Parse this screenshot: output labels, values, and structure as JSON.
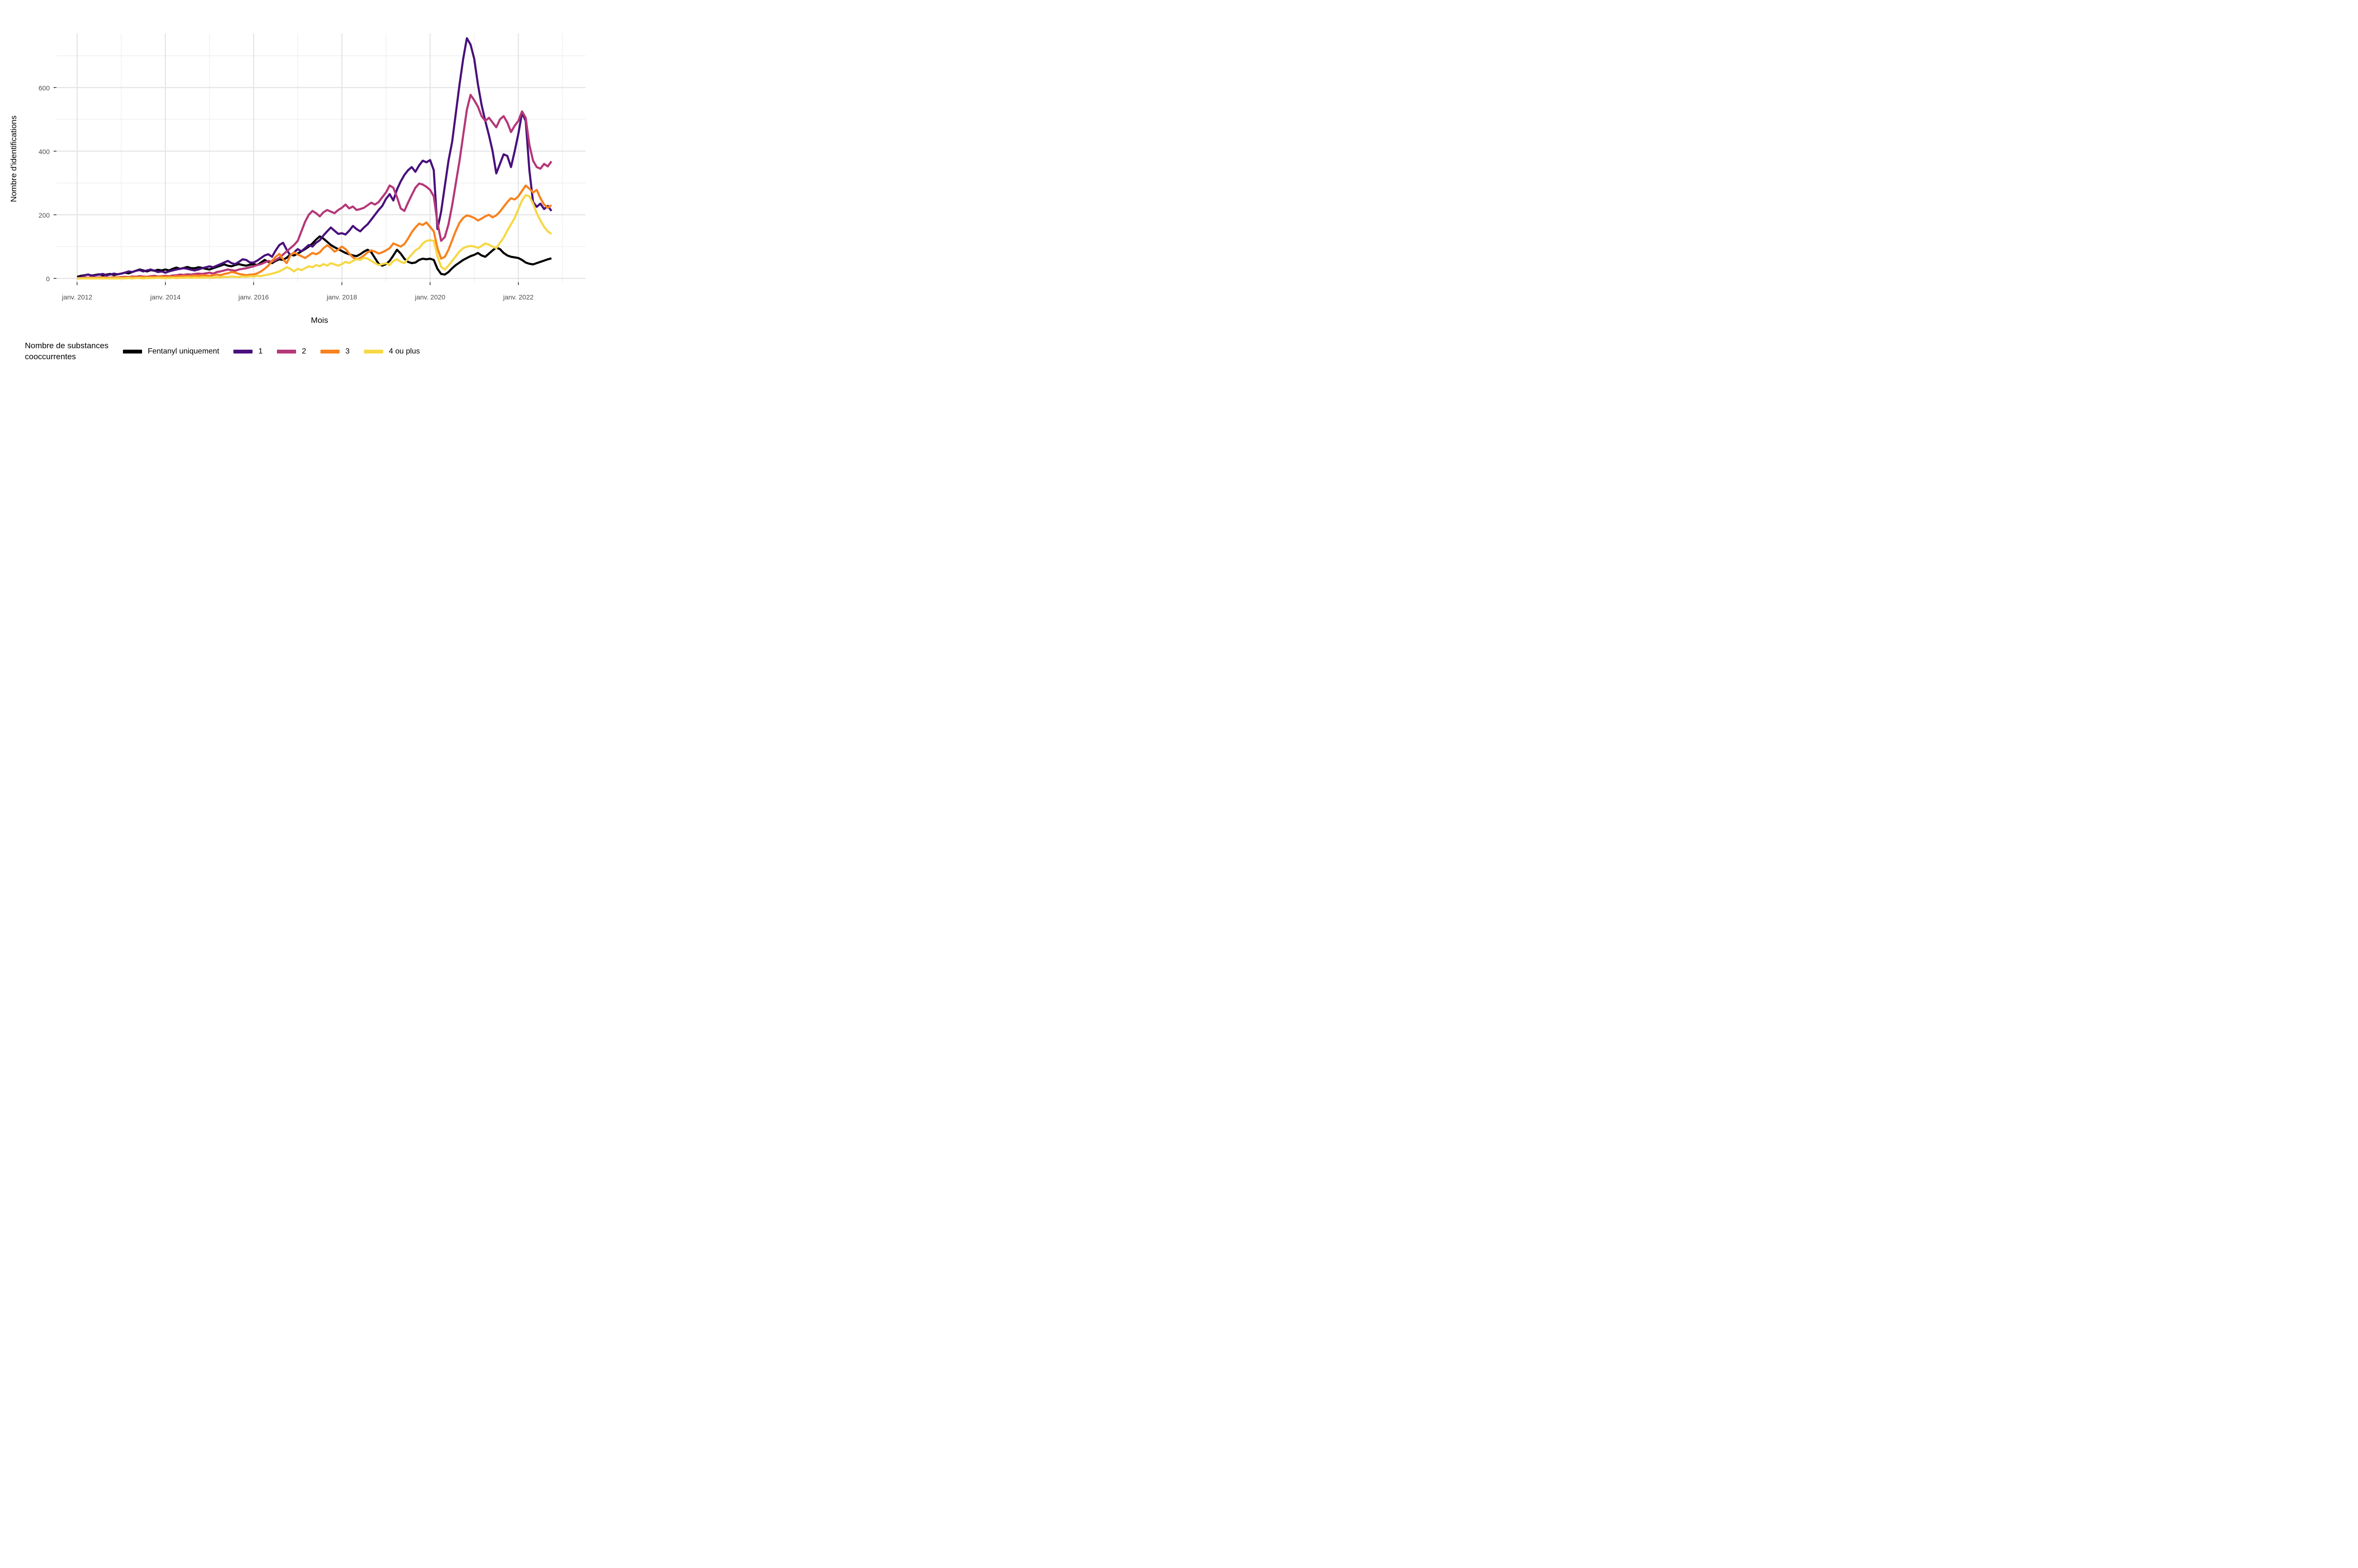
{
  "figure": {
    "y_axis": {
      "title": "Nombre d'identifications",
      "tick_labels": [
        "0",
        "200",
        "400",
        "600"
      ],
      "tick_values": [
        0,
        200,
        400,
        600
      ],
      "minor_values": [
        100,
        300,
        500,
        700
      ]
    },
    "x_axis": {
      "title": "Mois",
      "tick_labels": [
        "janv. 2012",
        "janv. 2014",
        "janv. 2016",
        "janv. 2018",
        "janv. 2020",
        "janv. 2022"
      ],
      "tick_month_index": [
        0,
        24,
        48,
        72,
        96,
        120
      ],
      "minor_month_index": [
        12,
        36,
        60,
        84,
        108,
        132
      ]
    },
    "legend": {
      "title_line1": "Nombre de substances",
      "title_line2": "cooccurrentes",
      "items": [
        {
          "label": "Fentanyl uniquement",
          "color": "#000000"
        },
        {
          "label": "1",
          "color": "#49107C"
        },
        {
          "label": "2",
          "color": "#B53778"
        },
        {
          "label": "3",
          "color": "#F8821F"
        },
        {
          "label": "4 ou plus",
          "color": "#F6D846"
        }
      ]
    }
  },
  "chart_data": {
    "type": "line",
    "title": "",
    "xlabel": "Mois",
    "ylabel": "Nombre d'identifications",
    "x_start": "2012-01",
    "x_end": "2022-10",
    "frequency": "monthly",
    "ylim": [
      0,
      780
    ],
    "y_major_gridlines": [
      0,
      200,
      400,
      600
    ],
    "y_minor_gridlines": [
      100,
      300,
      500,
      700
    ],
    "grid": "on",
    "legend_position": "bottom",
    "series": [
      {
        "name": "Fentanyl uniquement",
        "color": "#000000",
        "values": [
          5,
          8,
          10,
          12,
          9,
          11,
          13,
          10,
          12,
          14,
          11,
          13,
          15,
          18,
          16,
          20,
          24,
          28,
          25,
          22,
          26,
          24,
          27,
          25,
          28,
          25,
          30,
          34,
          30,
          33,
          36,
          32,
          32,
          35,
          33,
          30,
          28,
          32,
          36,
          40,
          44,
          40,
          38,
          42,
          45,
          42,
          40,
          43,
          45,
          42,
          50,
          58,
          52,
          48,
          55,
          60,
          58,
          65,
          75,
          72,
          78,
          85,
          92,
          100,
          110,
          122,
          132,
          125,
          115,
          105,
          98,
          92,
          86,
          80,
          76,
          72,
          70,
          76,
          84,
          90,
          82,
          64,
          46,
          40,
          45,
          55,
          72,
          90,
          78,
          62,
          52,
          48,
          50,
          58,
          62,
          60,
          62,
          58,
          30,
          14,
          12,
          20,
          32,
          42,
          50,
          58,
          64,
          70,
          74,
          80,
          72,
          68,
          78,
          88,
          97,
          92,
          80,
          72,
          68,
          66,
          64,
          58,
          50,
          46,
          44,
          48,
          52,
          56,
          60,
          63
        ]
      },
      {
        "name": "1",
        "color": "#49107C",
        "values": [
          2,
          4,
          10,
          12,
          8,
          10,
          12,
          14,
          10,
          12,
          15,
          13,
          15,
          18,
          22,
          20,
          24,
          26,
          22,
          25,
          28,
          24,
          20,
          22,
          18,
          22,
          25,
          28,
          30,
          32,
          30,
          27,
          25,
          28,
          32,
          35,
          38,
          35,
          40,
          45,
          50,
          55,
          48,
          45,
          52,
          60,
          58,
          50,
          50,
          56,
          64,
          72,
          76,
          68,
          88,
          105,
          112,
          90,
          72,
          82,
          92,
          85,
          95,
          105,
          100,
          112,
          120,
          135,
          148,
          160,
          150,
          140,
          142,
          138,
          150,
          165,
          155,
          148,
          160,
          170,
          185,
          200,
          215,
          228,
          250,
          265,
          245,
          280,
          305,
          325,
          340,
          350,
          335,
          355,
          370,
          365,
          372,
          340,
          155,
          210,
          290,
          370,
          430,
          520,
          610,
          690,
          755,
          735,
          690,
          610,
          545,
          495,
          450,
          400,
          330,
          360,
          390,
          385,
          350,
          400,
          455,
          520,
          495,
          340,
          240,
          225,
          235,
          218,
          228,
          212
        ]
      },
      {
        "name": "2",
        "color": "#B53778",
        "values": [
          0,
          1,
          3,
          2,
          3,
          2,
          3,
          4,
          3,
          2,
          4,
          3,
          4,
          5,
          4,
          6,
          5,
          7,
          6,
          5,
          7,
          8,
          6,
          7,
          8,
          7,
          9,
          10,
          12,
          11,
          13,
          12,
          14,
          15,
          14,
          16,
          18,
          15,
          20,
          22,
          25,
          28,
          26,
          24,
          28,
          30,
          32,
          35,
          38,
          42,
          45,
          50,
          55,
          52,
          58,
          65,
          75,
          85,
          95,
          105,
          118,
          148,
          178,
          200,
          212,
          205,
          195,
          208,
          215,
          210,
          205,
          215,
          222,
          232,
          220,
          226,
          215,
          218,
          222,
          230,
          238,
          232,
          240,
          255,
          270,
          292,
          285,
          255,
          220,
          212,
          238,
          262,
          285,
          298,
          295,
          288,
          278,
          258,
          175,
          118,
          130,
          170,
          230,
          300,
          370,
          450,
          530,
          577,
          560,
          540,
          510,
          495,
          505,
          490,
          475,
          500,
          510,
          490,
          460,
          480,
          495,
          525,
          505,
          420,
          370,
          350,
          345,
          360,
          352,
          368
        ]
      },
      {
        "name": "3",
        "color": "#F8821F",
        "values": [
          0,
          0,
          1,
          1,
          2,
          1,
          2,
          2,
          1,
          2,
          2,
          3,
          2,
          3,
          3,
          4,
          3,
          4,
          5,
          4,
          5,
          4,
          5,
          6,
          5,
          6,
          5,
          7,
          6,
          8,
          7,
          8,
          9,
          8,
          10,
          9,
          8,
          10,
          12,
          10,
          14,
          16,
          20,
          18,
          14,
          12,
          10,
          12,
          12,
          16,
          22,
          30,
          40,
          55,
          68,
          77,
          60,
          48,
          72,
          82,
          75,
          70,
          64,
          72,
          80,
          76,
          82,
          95,
          104,
          96,
          84,
          90,
          100,
          92,
          78,
          66,
          60,
          64,
          72,
          82,
          88,
          84,
          78,
          82,
          88,
          95,
          110,
          105,
          100,
          108,
          125,
          145,
          160,
          172,
          168,
          176,
          162,
          148,
          95,
          62,
          68,
          90,
          120,
          150,
          175,
          190,
          198,
          195,
          190,
          182,
          188,
          195,
          200,
          192,
          198,
          210,
          225,
          240,
          252,
          248,
          258,
          275,
          292,
          282,
          270,
          278,
          252,
          232,
          222,
          230
        ]
      },
      {
        "name": "4 ou plus",
        "color": "#F6D846",
        "values": [
          0,
          0,
          0,
          0,
          0,
          0,
          0,
          0,
          0,
          0,
          0,
          0,
          0,
          0,
          1,
          0,
          1,
          1,
          0,
          1,
          1,
          1,
          2,
          1,
          1,
          1,
          2,
          1,
          2,
          2,
          3,
          2,
          3,
          2,
          3,
          3,
          3,
          2,
          4,
          3,
          5,
          4,
          6,
          5,
          4,
          6,
          5,
          7,
          6,
          8,
          7,
          10,
          12,
          15,
          18,
          22,
          28,
          35,
          30,
          22,
          30,
          26,
          32,
          38,
          35,
          42,
          38,
          45,
          40,
          48,
          44,
          40,
          45,
          52,
          48,
          55,
          60,
          58,
          65,
          62,
          55,
          48,
          42,
          45,
          48,
          42,
          55,
          60,
          52,
          48,
          62,
          75,
          88,
          95,
          110,
          118,
          120,
          118,
          70,
          36,
          28,
          40,
          55,
          70,
          85,
          95,
          100,
          102,
          100,
          96,
          102,
          110,
          106,
          100,
          95,
          112,
          128,
          150,
          170,
          190,
          218,
          245,
          262,
          258,
          235,
          205,
          182,
          162,
          148,
          140
        ]
      }
    ]
  }
}
